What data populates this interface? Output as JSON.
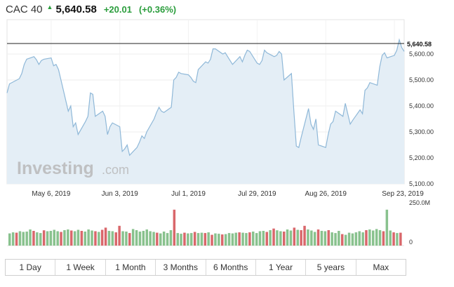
{
  "header": {
    "name": "CAC 40",
    "price": "5,640.58",
    "change": "+20.01",
    "change_pct": "(+0.36%)",
    "direction_icon": "up-arrow-icon",
    "up_color": "#2a9d3c"
  },
  "watermark": {
    "brand": "Investing",
    "suffix": ".com"
  },
  "tabs": [
    "1 Day",
    "1 Week",
    "1 Month",
    "3 Months",
    "6 Months",
    "1 Year",
    "5 years",
    "Max"
  ],
  "chart_data": {
    "type": "area",
    "title": "",
    "price_label": "5,640.58",
    "last_value": 5640.58,
    "ylim": [
      5100,
      5700
    ],
    "y_ticks": [
      5600,
      5500,
      5400,
      5300,
      5200,
      5100
    ],
    "y_tick_labels": [
      "5,600.00",
      "5,500.00",
      "5,400.00",
      "5,300.00",
      "5,200.00",
      "5,100.00"
    ],
    "x_tick_labels": [
      "May 6, 2019",
      "Jun 3, 2019",
      "Jul 1, 2019",
      "Jul 29, 2019",
      "Aug 26, 2019",
      "Sep 23, 2019"
    ],
    "x_range": [
      "2019-04-18",
      "2019-09-27"
    ],
    "series_color": "#8fb8d8",
    "fill_color": "#e4eef6",
    "series": [
      {
        "name": "",
        "points": [
          [
            "2019-04-18",
            5450
          ],
          [
            "2019-04-19",
            5485
          ],
          [
            "2019-04-22",
            5500
          ],
          [
            "2019-04-23",
            5505
          ],
          [
            "2019-04-24",
            5525
          ],
          [
            "2019-04-25",
            5560
          ],
          [
            "2019-04-26",
            5580
          ],
          [
            "2019-04-29",
            5590
          ],
          [
            "2019-04-30",
            5578
          ],
          [
            "2019-05-01",
            5560
          ],
          [
            "2019-05-02",
            5575
          ],
          [
            "2019-05-03",
            5580
          ],
          [
            "2019-05-06",
            5585
          ],
          [
            "2019-05-07",
            5555
          ],
          [
            "2019-05-08",
            5560
          ],
          [
            "2019-05-09",
            5540
          ],
          [
            "2019-05-10",
            5500
          ],
          [
            "2019-05-13",
            5380
          ],
          [
            "2019-05-14",
            5400
          ],
          [
            "2019-05-15",
            5320
          ],
          [
            "2019-05-16",
            5335
          ],
          [
            "2019-05-17",
            5290
          ],
          [
            "2019-05-20",
            5340
          ],
          [
            "2019-05-21",
            5360
          ],
          [
            "2019-05-22",
            5450
          ],
          [
            "2019-05-23",
            5445
          ],
          [
            "2019-05-24",
            5360
          ],
          [
            "2019-05-27",
            5380
          ],
          [
            "2019-05-28",
            5360
          ],
          [
            "2019-05-29",
            5290
          ],
          [
            "2019-05-30",
            5320
          ],
          [
            "2019-05-31",
            5335
          ],
          [
            "2019-06-03",
            5320
          ],
          [
            "2019-06-04",
            5225
          ],
          [
            "2019-06-05",
            5235
          ],
          [
            "2019-06-06",
            5250
          ],
          [
            "2019-06-07",
            5210
          ],
          [
            "2019-06-10",
            5240
          ],
          [
            "2019-06-11",
            5260
          ],
          [
            "2019-06-12",
            5285
          ],
          [
            "2019-06-13",
            5275
          ],
          [
            "2019-06-14",
            5300
          ],
          [
            "2019-06-17",
            5350
          ],
          [
            "2019-06-18",
            5375
          ],
          [
            "2019-06-19",
            5395
          ],
          [
            "2019-06-20",
            5380
          ],
          [
            "2019-06-21",
            5375
          ],
          [
            "2019-06-24",
            5395
          ],
          [
            "2019-06-25",
            5500
          ],
          [
            "2019-06-26",
            5510
          ],
          [
            "2019-06-27",
            5530
          ],
          [
            "2019-06-28",
            5525
          ],
          [
            "2019-07-01",
            5520
          ],
          [
            "2019-07-02",
            5510
          ],
          [
            "2019-07-03",
            5495
          ],
          [
            "2019-07-04",
            5490
          ],
          [
            "2019-07-05",
            5540
          ],
          [
            "2019-07-08",
            5570
          ],
          [
            "2019-07-09",
            5565
          ],
          [
            "2019-07-10",
            5580
          ],
          [
            "2019-07-11",
            5620
          ],
          [
            "2019-07-12",
            5620
          ],
          [
            "2019-07-15",
            5600
          ],
          [
            "2019-07-16",
            5605
          ],
          [
            "2019-07-17",
            5590
          ],
          [
            "2019-07-18",
            5575
          ],
          [
            "2019-07-19",
            5560
          ],
          [
            "2019-07-22",
            5590
          ],
          [
            "2019-07-23",
            5570
          ],
          [
            "2019-07-24",
            5595
          ],
          [
            "2019-07-25",
            5615
          ],
          [
            "2019-07-26",
            5610
          ],
          [
            "2019-07-29",
            5565
          ],
          [
            "2019-07-30",
            5560
          ],
          [
            "2019-07-31",
            5575
          ],
          [
            "2019-08-01",
            5615
          ],
          [
            "2019-08-02",
            5605
          ],
          [
            "2019-08-05",
            5590
          ],
          [
            "2019-08-06",
            5595
          ],
          [
            "2019-08-07",
            5610
          ],
          [
            "2019-08-08",
            5600
          ],
          [
            "2019-08-09",
            5500
          ],
          [
            "2019-08-12",
            5525
          ],
          [
            "2019-08-13",
            5380
          ],
          [
            "2019-08-14",
            5245
          ],
          [
            "2019-08-15",
            5240
          ],
          [
            "2019-08-16",
            5280
          ],
          [
            "2019-08-19",
            5390
          ],
          [
            "2019-08-20",
            5330
          ],
          [
            "2019-08-21",
            5310
          ],
          [
            "2019-08-22",
            5350
          ],
          [
            "2019-08-23",
            5250
          ],
          [
            "2019-08-26",
            5240
          ],
          [
            "2019-08-27",
            5290
          ],
          [
            "2019-08-28",
            5330
          ],
          [
            "2019-08-29",
            5340
          ],
          [
            "2019-08-30",
            5380
          ],
          [
            "2019-09-02",
            5360
          ],
          [
            "2019-09-03",
            5410
          ],
          [
            "2019-09-04",
            5370
          ],
          [
            "2019-09-05",
            5330
          ],
          [
            "2019-09-06",
            5345
          ],
          [
            "2019-09-09",
            5385
          ],
          [
            "2019-09-10",
            5370
          ],
          [
            "2019-09-11",
            5460
          ],
          [
            "2019-09-12",
            5470
          ],
          [
            "2019-09-13",
            5490
          ],
          [
            "2019-09-16",
            5480
          ],
          [
            "2019-09-17",
            5550
          ],
          [
            "2019-09-18",
            5595
          ],
          [
            "2019-09-19",
            5605
          ],
          [
            "2019-09-20",
            5585
          ],
          [
            "2019-09-23",
            5595
          ],
          [
            "2019-09-24",
            5615
          ],
          [
            "2019-09-25",
            5655
          ],
          [
            "2019-09-26",
            5625
          ],
          [
            "2019-09-27",
            5610
          ]
        ]
      }
    ],
    "volume": {
      "label": "250.0M",
      "zero_label": "0",
      "ylim": [
        0,
        250
      ],
      "up_color": "#89c28e",
      "down_color": "#d9676b",
      "bars": [
        [
          68,
          "u"
        ],
        [
          74,
          "u"
        ],
        [
          72,
          "d"
        ],
        [
          80,
          "u"
        ],
        [
          76,
          "u"
        ],
        [
          78,
          "u"
        ],
        [
          90,
          "u"
        ],
        [
          82,
          "d"
        ],
        [
          74,
          "u"
        ],
        [
          70,
          "u"
        ],
        [
          85,
          "d"
        ],
        [
          80,
          "u"
        ],
        [
          82,
          "u"
        ],
        [
          88,
          "u"
        ],
        [
          80,
          "u"
        ],
        [
          76,
          "d"
        ],
        [
          86,
          "u"
        ],
        [
          90,
          "u"
        ],
        [
          84,
          "d"
        ],
        [
          80,
          "u"
        ],
        [
          88,
          "u"
        ],
        [
          82,
          "d"
        ],
        [
          78,
          "u"
        ],
        [
          90,
          "u"
        ],
        [
          84,
          "u"
        ],
        [
          80,
          "d"
        ],
        [
          76,
          "u"
        ],
        [
          88,
          "d"
        ],
        [
          100,
          "d"
        ],
        [
          82,
          "u"
        ],
        [
          80,
          "u"
        ],
        [
          74,
          "d"
        ],
        [
          110,
          "d"
        ],
        [
          80,
          "u"
        ],
        [
          78,
          "u"
        ],
        [
          70,
          "d"
        ],
        [
          92,
          "u"
        ],
        [
          86,
          "u"
        ],
        [
          78,
          "u"
        ],
        [
          82,
          "u"
        ],
        [
          90,
          "u"
        ],
        [
          80,
          "u"
        ],
        [
          76,
          "u"
        ],
        [
          72,
          "d"
        ],
        [
          68,
          "u"
        ],
        [
          78,
          "u"
        ],
        [
          70,
          "u"
        ],
        [
          86,
          "u"
        ],
        [
          200,
          "d"
        ],
        [
          70,
          "u"
        ],
        [
          66,
          "u"
        ],
        [
          72,
          "d"
        ],
        [
          68,
          "u"
        ],
        [
          70,
          "u"
        ],
        [
          76,
          "d"
        ],
        [
          70,
          "u"
        ],
        [
          72,
          "u"
        ],
        [
          70,
          "d"
        ],
        [
          74,
          "u"
        ],
        [
          60,
          "d"
        ],
        [
          68,
          "u"
        ],
        [
          66,
          "u"
        ],
        [
          62,
          "d"
        ],
        [
          64,
          "u"
        ],
        [
          70,
          "u"
        ],
        [
          68,
          "u"
        ],
        [
          72,
          "u"
        ],
        [
          74,
          "d"
        ],
        [
          72,
          "u"
        ],
        [
          70,
          "u"
        ],
        [
          74,
          "d"
        ],
        [
          78,
          "u"
        ],
        [
          70,
          "u"
        ],
        [
          80,
          "u"
        ],
        [
          82,
          "u"
        ],
        [
          76,
          "d"
        ],
        [
          86,
          "u"
        ],
        [
          95,
          "d"
        ],
        [
          85,
          "u"
        ],
        [
          80,
          "u"
        ],
        [
          78,
          "d"
        ],
        [
          90,
          "u"
        ],
        [
          84,
          "u"
        ],
        [
          100,
          "d"
        ],
        [
          88,
          "u"
        ],
        [
          86,
          "d"
        ],
        [
          110,
          "d"
        ],
        [
          90,
          "u"
        ],
        [
          84,
          "u"
        ],
        [
          76,
          "u"
        ],
        [
          90,
          "d"
        ],
        [
          82,
          "u"
        ],
        [
          80,
          "u"
        ],
        [
          86,
          "d"
        ],
        [
          74,
          "u"
        ],
        [
          70,
          "u"
        ],
        [
          82,
          "u"
        ],
        [
          64,
          "d"
        ],
        [
          60,
          "u"
        ],
        [
          72,
          "u"
        ],
        [
          68,
          "u"
        ],
        [
          74,
          "u"
        ],
        [
          80,
          "u"
        ],
        [
          74,
          "u"
        ],
        [
          86,
          "d"
        ],
        [
          90,
          "u"
        ],
        [
          84,
          "u"
        ],
        [
          92,
          "u"
        ],
        [
          86,
          "u"
        ],
        [
          80,
          "d"
        ],
        [
          200,
          "u"
        ],
        [
          84,
          "u"
        ],
        [
          74,
          "d"
        ],
        [
          70,
          "u"
        ],
        [
          72,
          "d"
        ]
      ]
    }
  }
}
